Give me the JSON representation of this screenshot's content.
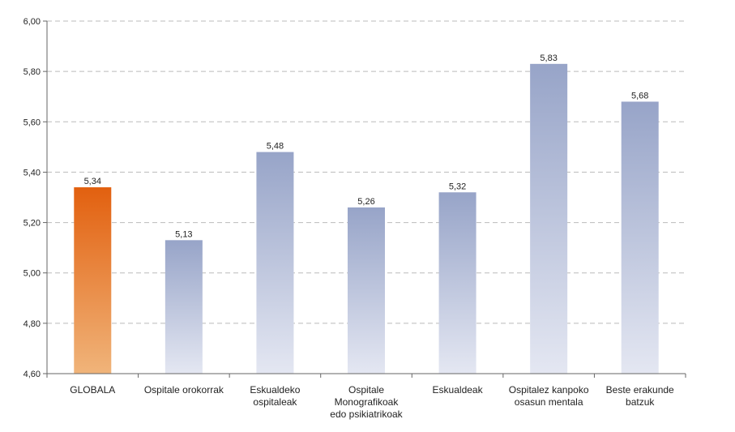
{
  "chart_data": {
    "type": "bar",
    "categories": [
      [
        "GLOBALA"
      ],
      [
        "Ospitale orokorrak"
      ],
      [
        "Eskualdeko",
        "ospitaleak"
      ],
      [
        "Ospitale",
        "Monografikoak",
        "edo psikiatrikoak"
      ],
      [
        "Eskualdeak"
      ],
      [
        "Ospitalez kanpoko",
        "osasun mentala"
      ],
      [
        "Beste erakunde",
        "batzuk"
      ]
    ],
    "values": [
      5.34,
      5.13,
      5.48,
      5.26,
      5.32,
      5.83,
      5.68
    ],
    "value_labels": [
      "5,34",
      "5,13",
      "5,48",
      "5,26",
      "5,32",
      "5,83",
      "5,68"
    ],
    "ylim": [
      4.6,
      6.0
    ],
    "yticks": [
      4.6,
      4.8,
      5.0,
      5.2,
      5.4,
      5.6,
      5.8,
      6.0
    ],
    "ytick_labels": [
      "4,60",
      "4,80",
      "5,00",
      "5,20",
      "5,40",
      "5,60",
      "5,80",
      "6,00"
    ],
    "grid": "horizontal dashed",
    "highlight_index": 0,
    "colors": {
      "highlight_top": "#e2600f",
      "highlight_bottom": "#f0b47a",
      "bar_top": "#97a4c8",
      "bar_bottom": "#e4e7f2",
      "grid": "#bbbbbb",
      "axis": "#666666"
    }
  }
}
